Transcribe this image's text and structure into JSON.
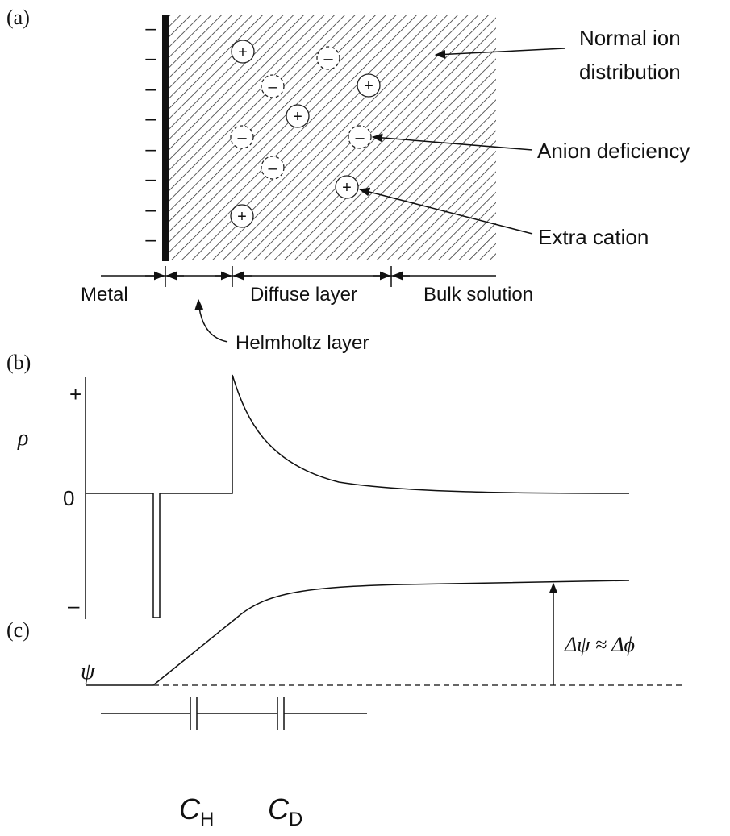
{
  "labels": {
    "a": "(a)",
    "b": "(b)",
    "c": "(c)"
  },
  "panel_a": {
    "metal_charges": [
      "–",
      "–",
      "–",
      "–",
      "–",
      "–",
      "–",
      "–"
    ],
    "ions": [
      "+",
      "–",
      "–",
      "+",
      "+",
      "–",
      "–",
      "–",
      "+",
      "+"
    ],
    "normal_ion": [
      "Normal ion",
      "distribution"
    ],
    "anion_deficiency": "Anion deficiency",
    "extra_cation": "Extra cation",
    "regions": {
      "metal": "Metal",
      "diffuse": "Diffuse layer",
      "bulk": "Bulk solution",
      "helmholtz": "Helmholtz layer"
    }
  },
  "panel_b": {
    "axis_label": "ρ",
    "ticks": [
      "+",
      "0",
      "–"
    ]
  },
  "panel_c": {
    "axis_label": "ψ",
    "delta": "Δψ ≈ Δϕ",
    "capacitors": [
      {
        "symbol": "C",
        "subscript": "H"
      },
      {
        "symbol": "C",
        "subscript": "D"
      }
    ]
  }
}
